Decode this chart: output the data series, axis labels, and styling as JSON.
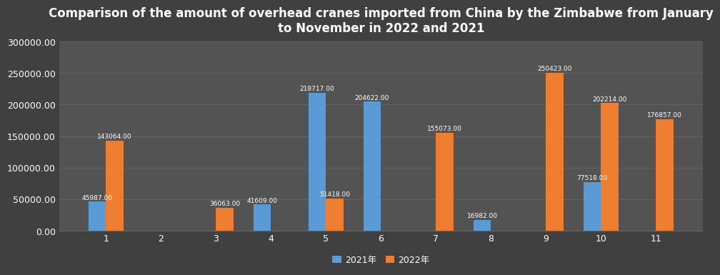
{
  "title": "Comparison of the amount of overhead cranes imported from China by the Zimbabwe from January\nto November in 2022 and 2021",
  "months": [
    1,
    2,
    3,
    4,
    5,
    6,
    7,
    8,
    9,
    10,
    11
  ],
  "values_2021": [
    45987.0,
    0,
    0,
    41609.0,
    218717.0,
    204622.0,
    0,
    16982.0,
    0,
    77518.0,
    0
  ],
  "values_2022": [
    143064.0,
    0,
    36063.0,
    0,
    51418.0,
    0,
    155073.0,
    0,
    250423.0,
    202214.0,
    176857.0
  ],
  "color_2021": "#5b9bd5",
  "color_2022": "#ed7d31",
  "background_color": "#404040",
  "plot_bg_color": "#535353",
  "text_color": "#ffffff",
  "grid_color": "#666666",
  "ylim": [
    0,
    300000
  ],
  "yticks": [
    0,
    50000,
    100000,
    150000,
    200000,
    250000,
    300000
  ],
  "legend_2021": "2021年",
  "legend_2022": "2022年",
  "title_fontsize": 12,
  "bar_width": 0.32,
  "label_fontsize": 6.5,
  "tick_fontsize": 9,
  "legend_fontsize": 9
}
